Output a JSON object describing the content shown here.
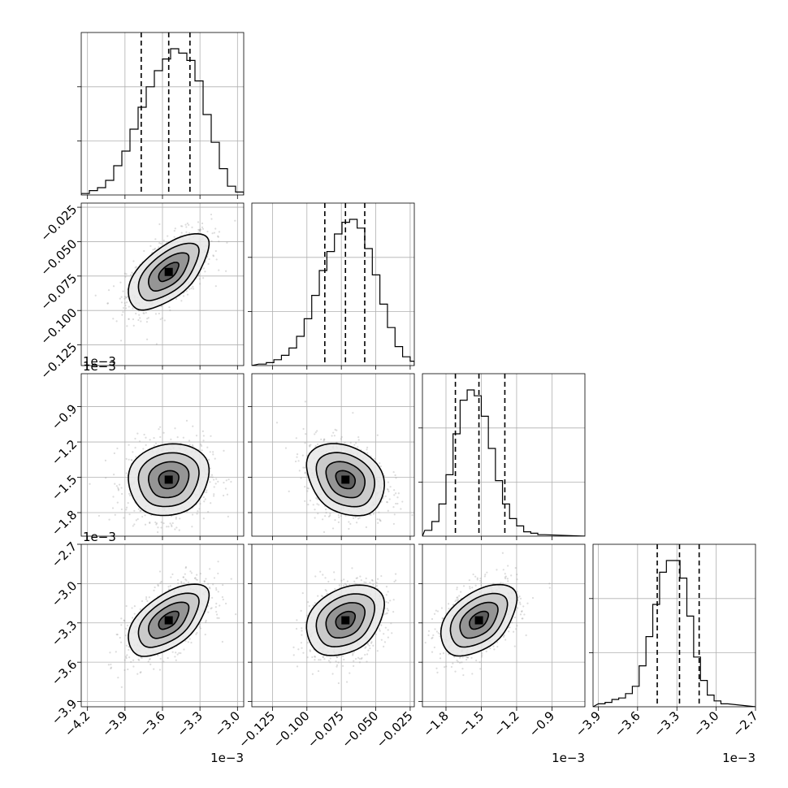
{
  "chart_data": {
    "type": "corner",
    "parameters": [
      {
        "range": [
          -4.25,
          -2.95
        ],
        "ticks": [
          -4.2,
          -3.9,
          -3.6,
          -3.3,
          -3.0
        ],
        "tick_labels": [
          "−4.2",
          "−3.9",
          "−3.6",
          "−3.3",
          "−3.0"
        ],
        "offset_text": "1e−3"
      },
      {
        "range": [
          -0.14,
          -0.022
        ],
        "ticks": [
          -0.125,
          -0.1,
          -0.075,
          -0.05,
          -0.025
        ],
        "tick_labels": [
          "−0.125",
          "−0.100",
          "−0.075",
          "−0.050",
          "−0.025"
        ],
        "offset_text": ""
      },
      {
        "range": [
          -2.0,
          -0.62
        ],
        "ticks": [
          -1.8,
          -1.5,
          -1.2,
          -0.9
        ],
        "tick_labels": [
          "−1.8",
          "−1.5",
          "−1.2",
          "−0.9"
        ],
        "offset_text": "1e−3"
      },
      {
        "range": [
          -3.94,
          -2.7
        ],
        "ticks": [
          -3.9,
          -3.6,
          -3.3,
          -3.0,
          -2.7
        ],
        "tick_labels": [
          "−3.9",
          "−3.6",
          "−3.3",
          "−3.0",
          "−2.7"
        ],
        "offset_text": "1e−3"
      }
    ],
    "marginals": [
      {
        "edges_start": -4.25,
        "bin_width": 0.065,
        "counts": [
          0.01,
          0.03,
          0.05,
          0.1,
          0.2,
          0.3,
          0.45,
          0.6,
          0.74,
          0.85,
          0.93,
          1.0,
          0.97,
          0.92,
          0.78,
          0.55,
          0.36,
          0.18,
          0.06,
          0.02
        ],
        "quantiles": [
          -3.77,
          -3.55,
          -3.38
        ]
      },
      {
        "edges_start": -0.135,
        "bin_width": 0.0055,
        "counts": [
          0.01,
          0.02,
          0.04,
          0.07,
          0.12,
          0.2,
          0.32,
          0.48,
          0.65,
          0.78,
          0.9,
          0.98,
          1.0,
          0.94,
          0.8,
          0.62,
          0.42,
          0.26,
          0.13,
          0.06,
          0.03
        ],
        "quantiles": [
          -0.087,
          -0.072,
          -0.058
        ]
      },
      {
        "edges_start": -1.98,
        "bin_width": 0.06,
        "counts": [
          0.04,
          0.1,
          0.22,
          0.42,
          0.7,
          0.93,
          1.0,
          0.96,
          0.82,
          0.6,
          0.38,
          0.22,
          0.12,
          0.07,
          0.03,
          0.02,
          0.01
        ],
        "quantiles": [
          -1.72,
          -1.52,
          -1.3
        ]
      },
      {
        "edges_start": -3.9,
        "bin_width": 0.052,
        "counts": [
          0.02,
          0.03,
          0.05,
          0.06,
          0.09,
          0.14,
          0.28,
          0.48,
          0.7,
          0.92,
          1.0,
          1.0,
          0.88,
          0.62,
          0.34,
          0.18,
          0.08,
          0.04,
          0.02
        ],
        "quantiles": [
          -3.45,
          -3.28,
          -3.13
        ]
      }
    ],
    "pairs": [
      {
        "x": 0,
        "y": 1,
        "mean": [
          -3.55,
          -0.072
        ],
        "sd": [
          0.16,
          0.014
        ],
        "rho": 0.6
      },
      {
        "x": 0,
        "y": 2,
        "mean": [
          -3.55,
          -1.52
        ],
        "sd": [
          0.16,
          0.16
        ],
        "rho": 0.1
      },
      {
        "x": 1,
        "y": 2,
        "mean": [
          -0.072,
          -1.52
        ],
        "sd": [
          0.014,
          0.16
        ],
        "rho": -0.25
      },
      {
        "x": 0,
        "y": 3,
        "mean": [
          -3.55,
          -3.28
        ],
        "sd": [
          0.16,
          0.14
        ],
        "rho": 0.55
      },
      {
        "x": 1,
        "y": 3,
        "mean": [
          -0.072,
          -3.28
        ],
        "sd": [
          0.014,
          0.14
        ],
        "rho": 0.3
      },
      {
        "x": 2,
        "y": 3,
        "mean": [
          -1.52,
          -3.28
        ],
        "sd": [
          0.16,
          0.14
        ],
        "rho": 0.45
      }
    ],
    "grid": true,
    "contour_levels_sigma": [
      0.5,
      1.0,
      1.5,
      2.0
    ]
  }
}
